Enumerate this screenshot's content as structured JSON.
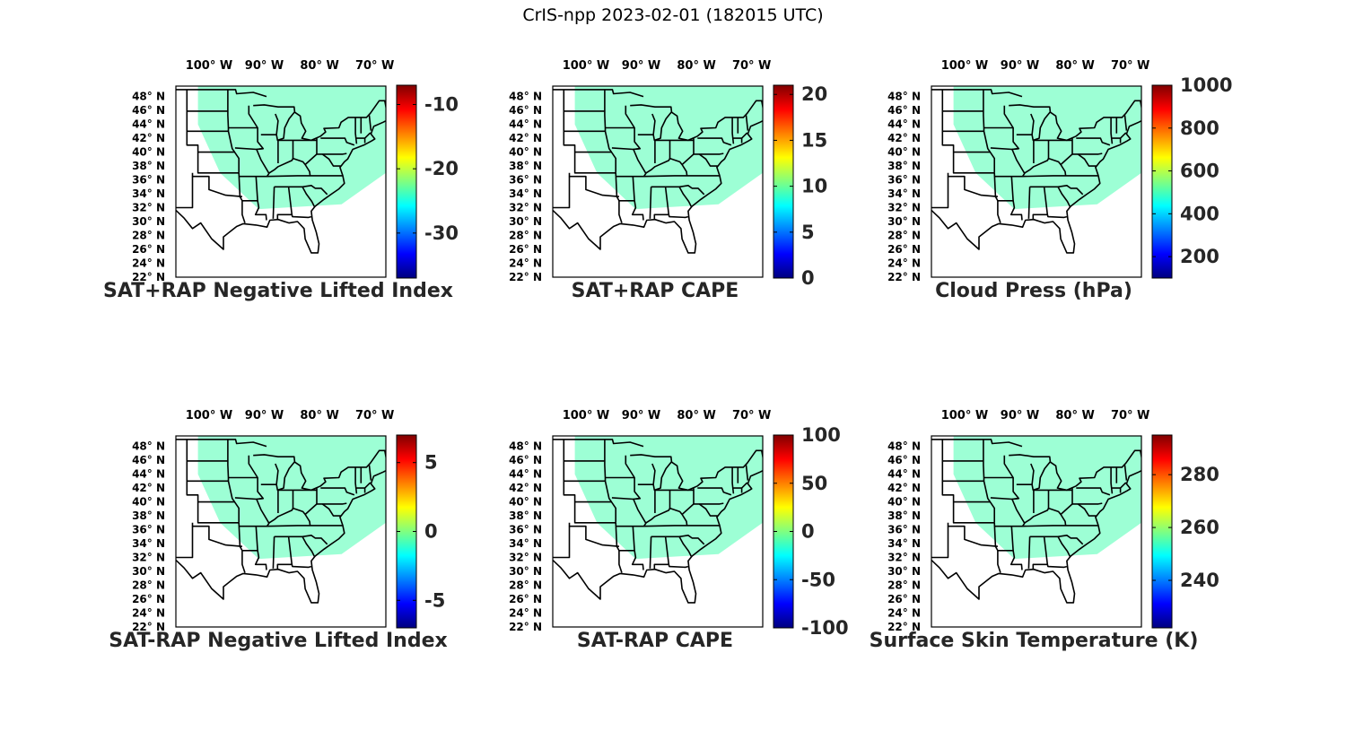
{
  "figure_title": "CrIS-npp 2023-02-01 (182015 UTC)",
  "colors": {
    "colormap": "jet",
    "state_lines": "#000000",
    "frame": "#000000"
  },
  "map_axes": {
    "lon_labels": [
      "100° W",
      "90° W",
      "80° W",
      "70° W"
    ],
    "lon_values": [
      -100,
      -90,
      -80,
      -70
    ],
    "lat_labels": [
      "48° N",
      "46° N",
      "44° N",
      "42° N",
      "40° N",
      "38° N",
      "36° N",
      "34° N",
      "32° N",
      "30° N",
      "28° N",
      "26° N",
      "24° N",
      "22° N"
    ],
    "lat_values": [
      48,
      46,
      44,
      42,
      40,
      38,
      36,
      34,
      32,
      30,
      28,
      26,
      24,
      22
    ],
    "lon_range": [
      -106,
      -68
    ],
    "lat_range": [
      22,
      49.5
    ]
  },
  "panels": [
    {
      "title": "SAT+RAP Negative Lifted Index",
      "colorbar": {
        "min": -37,
        "max": -7,
        "ticks": [
          -10,
          -20,
          -30
        ]
      }
    },
    {
      "title": "SAT+RAP CAPE",
      "colorbar": {
        "min": 0,
        "max": 21,
        "ticks": [
          20,
          15,
          10,
          5,
          0
        ]
      }
    },
    {
      "title": "Cloud Press (hPa)",
      "colorbar": {
        "min": 100,
        "max": 1000,
        "ticks": [
          1000,
          800,
          600,
          400,
          200
        ]
      }
    },
    {
      "title": "SAT-RAP Negative Lifted Index",
      "colorbar": {
        "min": -7,
        "max": 7,
        "ticks": [
          5,
          0,
          -5
        ]
      }
    },
    {
      "title": "SAT-RAP CAPE",
      "colorbar": {
        "min": -100,
        "max": 100,
        "ticks": [
          100,
          50,
          0,
          -50,
          -100
        ]
      }
    },
    {
      "title": "Surface Skin Temperature (K)",
      "colorbar": {
        "min": 222,
        "max": 295,
        "ticks": [
          280,
          260,
          240
        ]
      }
    }
  ]
}
